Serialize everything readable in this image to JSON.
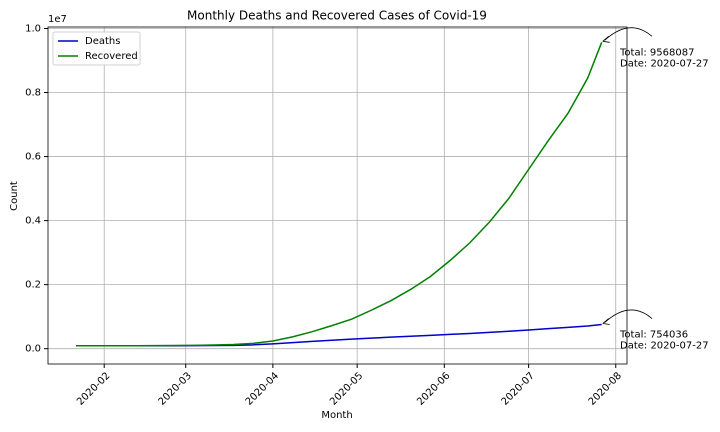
{
  "chart_data": {
    "type": "line",
    "title": "Monthly Deaths and Recovered Cases of Covid-19",
    "x_label": "Month",
    "y_label": "Count",
    "y_offset_label": "1e7",
    "x": [
      "2020-01-22",
      "2020-01-29",
      "2020-02-05",
      "2020-02-12",
      "2020-02-19",
      "2020-02-26",
      "2020-03-04",
      "2020-03-11",
      "2020-03-18",
      "2020-03-25",
      "2020-04-01",
      "2020-04-08",
      "2020-04-15",
      "2020-04-22",
      "2020-04-29",
      "2020-05-06",
      "2020-05-13",
      "2020-05-20",
      "2020-05-27",
      "2020-06-03",
      "2020-06-10",
      "2020-06-17",
      "2020-06-24",
      "2020-07-01",
      "2020-07-08",
      "2020-07-15",
      "2020-07-22",
      "2020-07-27"
    ],
    "series": [
      {
        "name": "Deaths",
        "color": "#0000cc",
        "values": [
          90000,
          90000,
          90000,
          90000,
          91000,
          92000,
          95000,
          98000,
          105000,
          120000,
          150000,
          190000,
          230000,
          265000,
          300000,
          330000,
          360000,
          390000,
          415000,
          445000,
          475000,
          510000,
          545000,
          585000,
          625000,
          665000,
          710000,
          754036
        ]
      },
      {
        "name": "Recovered",
        "color": "#008000",
        "values": [
          90000,
          90000,
          91000,
          92000,
          94000,
          98000,
          105000,
          115000,
          130000,
          165000,
          240000,
          370000,
          530000,
          720000,
          920000,
          1200000,
          1500000,
          1850000,
          2250000,
          2750000,
          3300000,
          3950000,
          4700000,
          5600000,
          6500000,
          7350000,
          8450000,
          9568087
        ]
      }
    ],
    "annotations": [
      {
        "lines": [
          "Total: 754036",
          "Date: 2020-07-27"
        ]
      },
      {
        "lines": [
          "Total: 9568087",
          "Date: 2020-07-27"
        ]
      }
    ],
    "xlim": [
      "2020-01-12",
      "2020-08-05"
    ],
    "xticks": [
      {
        "value": "2020-02-01",
        "label": "2020-02"
      },
      {
        "value": "2020-03-01",
        "label": "2020-03"
      },
      {
        "value": "2020-04-01",
        "label": "2020-04"
      },
      {
        "value": "2020-05-01",
        "label": "2020-05"
      },
      {
        "value": "2020-06-01",
        "label": "2020-06"
      },
      {
        "value": "2020-07-01",
        "label": "2020-07"
      },
      {
        "value": "2020-08-01",
        "label": "2020-08"
      }
    ],
    "ylim": [
      -478404,
      10046491
    ],
    "yticks": [
      {
        "value": 0,
        "label": "0.0"
      },
      {
        "value": 2000000,
        "label": "0.2"
      },
      {
        "value": 4000000,
        "label": "0.4"
      },
      {
        "value": 6000000,
        "label": "0.6"
      },
      {
        "value": 8000000,
        "label": "0.8"
      },
      {
        "value": 10000000,
        "label": "1.0"
      }
    ],
    "grid": true,
    "legend": "upper left"
  }
}
